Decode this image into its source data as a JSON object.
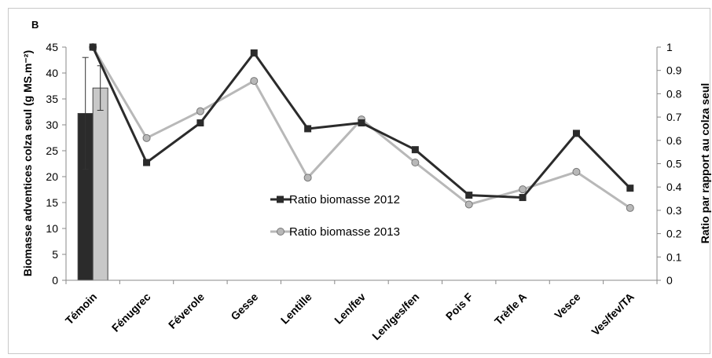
{
  "panel_label": "B",
  "colors": {
    "series_2012": "#2b2b2b",
    "series_2013": "#b8b8b8",
    "bar_2012": "#2b2b2b",
    "bar_2013": "#c8c8c8",
    "frame": "#c8c8c8"
  },
  "chart_data": {
    "type": "line",
    "categories": [
      "Témoin",
      "Fénugrec",
      "Féverole",
      "Gesse",
      "Lentille",
      "Len/fev",
      "Len/ges/fen",
      "Pois F",
      "Trèfle A",
      "Vesce",
      "Ves/fev/TA"
    ],
    "ylabel": "Biomasse adventices colza seul (g MS.m⁻²)",
    "y2label": "Ratio par rapport au colza seul",
    "ylim": [
      0,
      45
    ],
    "y2lim": [
      0,
      1
    ],
    "yticks": [
      "0",
      "5",
      "10",
      "15",
      "20",
      "25",
      "30",
      "35",
      "40",
      "45"
    ],
    "y2ticks": [
      "0",
      "0.1",
      "0.2",
      "0.3",
      "0.4",
      "0.5",
      "0.6",
      "0.7",
      "0.8",
      "0.9",
      "1"
    ],
    "bars": {
      "category": "Témoin",
      "values": [
        {
          "year": "2012",
          "value": 32.2,
          "error": 10.8
        },
        {
          "year": "2013",
          "value": 37.1,
          "error": 4.3
        }
      ]
    },
    "series": [
      {
        "name": "Ratio biomasse 2012",
        "marker": "square",
        "values": [
          1.0,
          0.505,
          0.675,
          0.975,
          0.65,
          0.675,
          0.56,
          0.365,
          0.355,
          0.63,
          0.395
        ]
      },
      {
        "name": "Ratio biomasse 2013",
        "marker": "circle",
        "values": [
          1.0,
          0.61,
          0.725,
          0.855,
          0.44,
          0.69,
          0.505,
          0.325,
          0.39,
          0.465,
          0.31
        ]
      }
    ],
    "legend_position": "center"
  }
}
